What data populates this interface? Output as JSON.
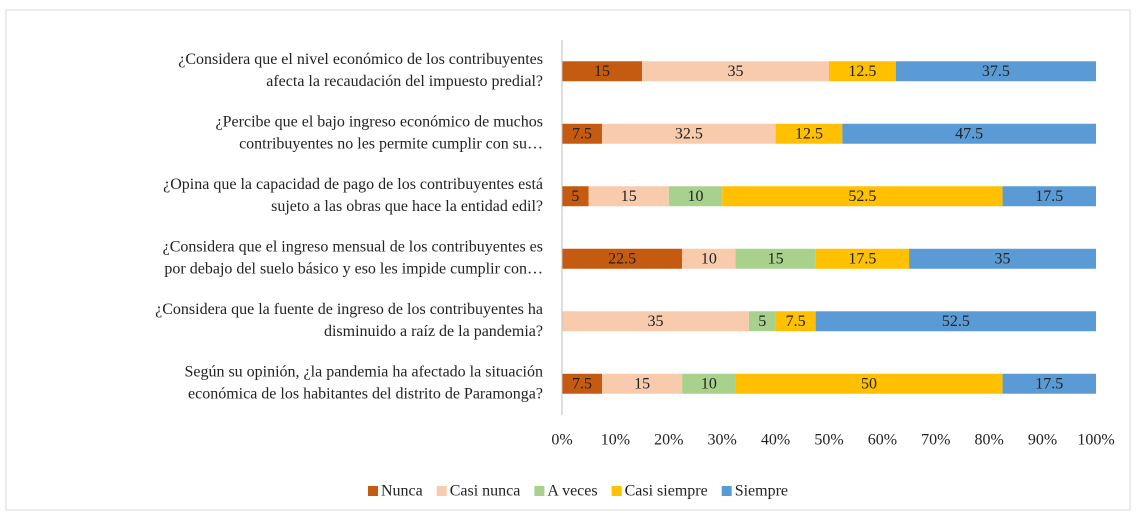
{
  "chart_data": {
    "type": "stacked_barh",
    "categories": [
      [
        "¿Considera que el nivel económico de los contribuyentes",
        "afecta la recaudación del impuesto predial?"
      ],
      [
        "¿Percibe que el bajo ingreso económico de muchos",
        "contribuyentes no les permite cumplir con su…"
      ],
      [
        "¿Opina que la capacidad de pago de los contribuyentes está",
        "sujeto a las obras que hace la entidad edil?"
      ],
      [
        "¿Considera que el ingreso mensual de los contribuyentes es",
        "por debajo del suelo básico y eso les impide cumplir con…"
      ],
      [
        "¿Considera que la fuente de ingreso de los contribuyentes ha",
        "disminuido a raíz de la pandemia?"
      ],
      [
        "Según su opinión, ¿la pandemia ha afectado la situación",
        "económica de los habitantes del distrito de Paramonga?"
      ]
    ],
    "series": [
      {
        "name": "Nunca",
        "color": "#c55a11",
        "values": [
          15,
          7.5,
          5,
          22.5,
          0,
          7.5
        ]
      },
      {
        "name": "Casi nunca",
        "color": "#f8cbad",
        "values": [
          35,
          32.5,
          15,
          10,
          35,
          15
        ]
      },
      {
        "name": "A veces",
        "color": "#a9d18e",
        "values": [
          0,
          0,
          10,
          15,
          5,
          10
        ]
      },
      {
        "name": "Casi siempre",
        "color": "#ffc000",
        "values": [
          12.5,
          12.5,
          52.5,
          17.5,
          7.5,
          50
        ]
      },
      {
        "name": "Siempre",
        "color": "#5b9bd5",
        "values": [
          37.5,
          47.5,
          17.5,
          35,
          52.5,
          17.5
        ]
      }
    ],
    "xlim": [
      0,
      100
    ],
    "xticks": [
      {
        "value": 0,
        "label": "0%"
      },
      {
        "value": 10,
        "label": "10%"
      },
      {
        "value": 20,
        "label": "20%"
      },
      {
        "value": 30,
        "label": "30%"
      },
      {
        "value": 40,
        "label": "40%"
      },
      {
        "value": 50,
        "label": "50%"
      },
      {
        "value": 60,
        "label": "60%"
      },
      {
        "value": 70,
        "label": "70%"
      },
      {
        "value": 80,
        "label": "80%"
      },
      {
        "value": 90,
        "label": "90%"
      },
      {
        "value": 100,
        "label": "100%"
      }
    ],
    "legend": "bottom"
  }
}
